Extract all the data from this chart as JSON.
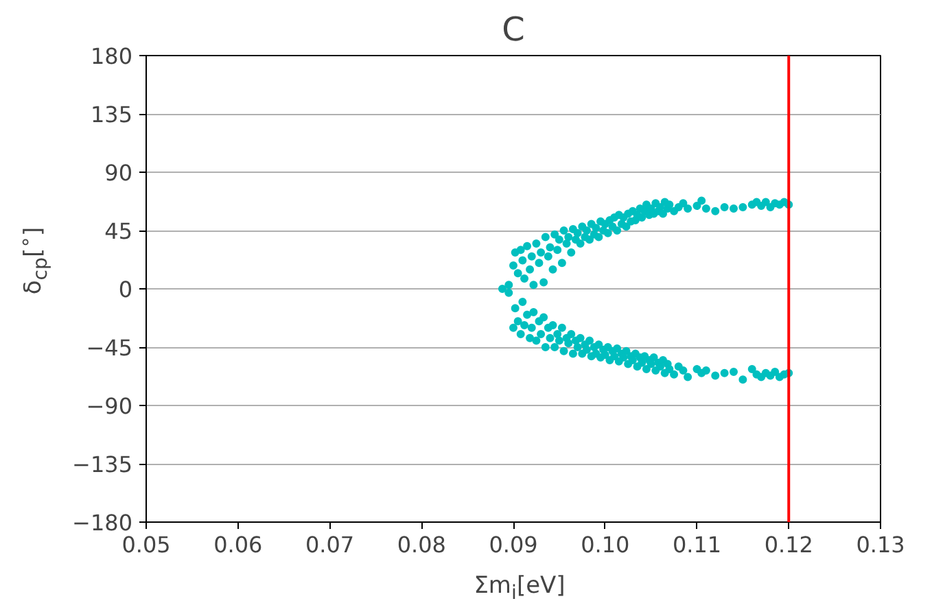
{
  "chart_data": {
    "type": "scatter",
    "title": "C",
    "xlabel": "Σm$_{i}$[eV]",
    "ylabel": "δ$_{cp}$[$^{∘}$]",
    "xlim": [
      0.05,
      0.13
    ],
    "xticks": [
      {
        "value": 0.05,
        "label": "0.05"
      },
      {
        "value": 0.06,
        "label": "0.06"
      },
      {
        "value": 0.07,
        "label": "0.07"
      },
      {
        "value": 0.08,
        "label": "0.08"
      },
      {
        "value": 0.09,
        "label": "0.09"
      },
      {
        "value": 0.1,
        "label": "0.10"
      },
      {
        "value": 0.11,
        "label": "0.11"
      },
      {
        "value": 0.12,
        "label": "0.12"
      },
      {
        "value": 0.13,
        "label": "0.13"
      }
    ],
    "ylim": [
      -180,
      180
    ],
    "yticks": [
      -180,
      -135,
      -90,
      -45,
      0,
      45,
      90,
      135,
      180
    ],
    "grid": "y",
    "marker": "circle",
    "ref_lines": [
      {
        "axis": "x",
        "value": 0.12,
        "color": "#ff0000"
      }
    ],
    "series": [
      {
        "color": "#00bfbf",
        "x": [
          0.0888,
          0.0895,
          0.09,
          0.0902,
          0.0905,
          0.0908,
          0.091,
          0.0912,
          0.0915,
          0.0918,
          0.092,
          0.0922,
          0.0925,
          0.0928,
          0.093,
          0.0933,
          0.0935,
          0.0938,
          0.094,
          0.0943,
          0.0945,
          0.0948,
          0.095,
          0.0953,
          0.0955,
          0.0958,
          0.096,
          0.0963,
          0.0965,
          0.0968,
          0.097,
          0.0973,
          0.0975,
          0.0978,
          0.098,
          0.0983,
          0.0985,
          0.0988,
          0.099,
          0.0993,
          0.0995,
          0.0998,
          0.1,
          0.1003,
          0.1005,
          0.1008,
          0.101,
          0.1013,
          0.1015,
          0.1018,
          0.102,
          0.1023,
          0.1025,
          0.1028,
          0.103,
          0.1033,
          0.1035,
          0.1038,
          0.104,
          0.1043,
          0.1045,
          0.1048,
          0.105,
          0.1053,
          0.1055,
          0.1058,
          0.106,
          0.1063,
          0.1065,
          0.1068,
          0.107,
          0.1075,
          0.108,
          0.1085,
          0.109,
          0.11,
          0.1105,
          0.111,
          0.112,
          0.113,
          0.114,
          0.115,
          0.116,
          0.1165,
          0.117,
          0.1175,
          0.118,
          0.1185,
          0.119,
          0.1195,
          0.12,
          0.0895,
          0.09,
          0.0902,
          0.0905,
          0.0908,
          0.091,
          0.0912,
          0.0915,
          0.0918,
          0.092,
          0.0922,
          0.0925,
          0.0928,
          0.093,
          0.0933,
          0.0935,
          0.0938,
          0.094,
          0.0943,
          0.0945,
          0.0948,
          0.095,
          0.0953,
          0.0955,
          0.0958,
          0.096,
          0.0963,
          0.0965,
          0.0968,
          0.097,
          0.0973,
          0.0975,
          0.0978,
          0.098,
          0.0983,
          0.0985,
          0.0988,
          0.099,
          0.0993,
          0.0995,
          0.0998,
          0.1,
          0.1003,
          0.1005,
          0.1008,
          0.101,
          0.1013,
          0.1015,
          0.1018,
          0.102,
          0.1023,
          0.1025,
          0.1028,
          0.103,
          0.1033,
          0.1035,
          0.1038,
          0.104,
          0.1043,
          0.1045,
          0.1048,
          0.105,
          0.1053,
          0.1055,
          0.1058,
          0.106,
          0.1063,
          0.1065,
          0.1068,
          0.107,
          0.1075,
          0.108,
          0.1085,
          0.109,
          0.11,
          0.1105,
          0.111,
          0.112,
          0.113,
          0.114,
          0.115,
          0.116,
          0.1165,
          0.117,
          0.1175,
          0.118,
          0.1185,
          0.119,
          0.1195,
          0.12
        ],
        "values": [
          0,
          3,
          18,
          28,
          12,
          30,
          22,
          8,
          33,
          15,
          25,
          3,
          35,
          20,
          28,
          5,
          40,
          25,
          32,
          15,
          42,
          30,
          38,
          20,
          45,
          35,
          40,
          28,
          46,
          38,
          43,
          35,
          48,
          40,
          45,
          38,
          50,
          42,
          47,
          40,
          52,
          45,
          50,
          43,
          53,
          48,
          55,
          45,
          57,
          50,
          55,
          48,
          58,
          52,
          60,
          53,
          57,
          62,
          55,
          60,
          65,
          57,
          62,
          58,
          66,
          60,
          63,
          58,
          67,
          62,
          65,
          60,
          63,
          66,
          62,
          64,
          68,
          62,
          60,
          63,
          62,
          63,
          65,
          67,
          64,
          67,
          63,
          66,
          65,
          67,
          65,
          -3,
          -30,
          -15,
          -25,
          -35,
          -10,
          -28,
          -20,
          -38,
          -30,
          -18,
          -40,
          -25,
          -35,
          -22,
          -45,
          -30,
          -38,
          -28,
          -45,
          -35,
          -40,
          -30,
          -48,
          -38,
          -42,
          -35,
          -50,
          -40,
          -45,
          -38,
          -50,
          -43,
          -47,
          -40,
          -52,
          -45,
          -50,
          -43,
          -53,
          -47,
          -51,
          -45,
          -55,
          -48,
          -52,
          -46,
          -56,
          -50,
          -53,
          -48,
          -58,
          -52,
          -55,
          -50,
          -60,
          -53,
          -57,
          -52,
          -62,
          -55,
          -58,
          -53,
          -63,
          -57,
          -60,
          -55,
          -65,
          -58,
          -62,
          -66,
          -60,
          -63,
          -68,
          -62,
          -65,
          -63,
          -67,
          -65,
          -64,
          -70,
          -62,
          -66,
          -68,
          -65,
          -67,
          -64,
          -68,
          -66,
          -65
        ]
      }
    ]
  }
}
